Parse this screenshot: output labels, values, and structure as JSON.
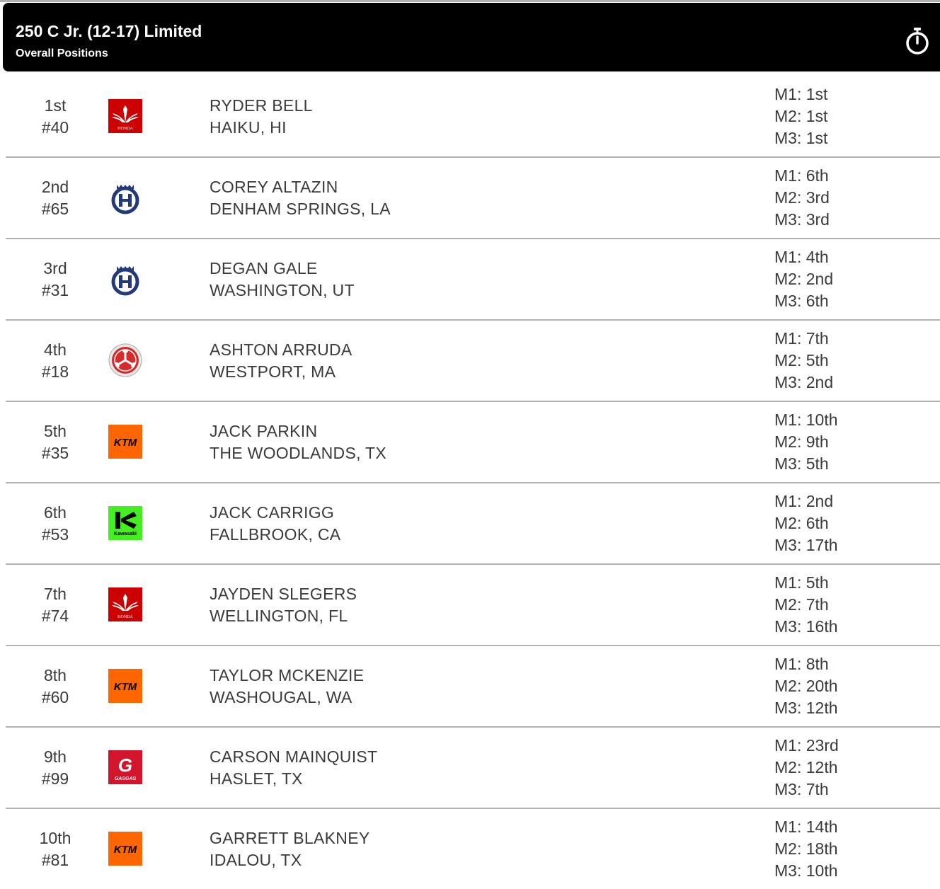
{
  "header": {
    "title": "250 C Jr. (12-17) Limited",
    "subtitle": "Overall Positions",
    "timer_icon": "stopwatch-icon"
  },
  "rows": [
    {
      "position": "1st",
      "number": "#40",
      "brand": "honda",
      "name": "RYDER BELL",
      "hometown": "HAIKU, HI",
      "m1": "M1: 1st",
      "m2": "M2: 1st",
      "m3": "M3: 1st"
    },
    {
      "position": "2nd",
      "number": "#65",
      "brand": "husqvarna",
      "name": "COREY ALTAZIN",
      "hometown": "DENHAM SPRINGS, LA",
      "m1": "M1: 6th",
      "m2": "M2: 3rd",
      "m3": "M3: 3rd"
    },
    {
      "position": "3rd",
      "number": "#31",
      "brand": "husqvarna",
      "name": "DEGAN GALE",
      "hometown": "WASHINGTON, UT",
      "m1": "M1: 4th",
      "m2": "M2: 2nd",
      "m3": "M3: 6th"
    },
    {
      "position": "4th",
      "number": "#18",
      "brand": "yamaha",
      "name": "ASHTON ARRUDA",
      "hometown": "WESTPORT, MA",
      "m1": "M1: 7th",
      "m2": "M2: 5th",
      "m3": "M3: 2nd"
    },
    {
      "position": "5th",
      "number": "#35",
      "brand": "ktm",
      "name": "JACK PARKIN",
      "hometown": "THE WOODLANDS, TX",
      "m1": "M1: 10th",
      "m2": "M2: 9th",
      "m3": "M3: 5th"
    },
    {
      "position": "6th",
      "number": "#53",
      "brand": "kawasaki",
      "name": "JACK CARRIGG",
      "hometown": "FALLBROOK, CA",
      "m1": "M1: 2nd",
      "m2": "M2: 6th",
      "m3": "M3: 17th"
    },
    {
      "position": "7th",
      "number": "#74",
      "brand": "honda",
      "name": "JAYDEN SLEGERS",
      "hometown": "WELLINGTON, FL",
      "m1": "M1: 5th",
      "m2": "M2: 7th",
      "m3": "M3: 16th"
    },
    {
      "position": "8th",
      "number": "#60",
      "brand": "ktm",
      "name": "TAYLOR MCKENZIE",
      "hometown": "WASHOUGAL, WA",
      "m1": "M1: 8th",
      "m2": "M2: 20th",
      "m3": "M3: 12th"
    },
    {
      "position": "9th",
      "number": "#99",
      "brand": "gasgas",
      "name": "CARSON MAINQUIST",
      "hometown": "HASLET, TX",
      "m1": "M1: 23rd",
      "m2": "M2: 12th",
      "m3": "M3: 7th"
    },
    {
      "position": "10th",
      "number": "#81",
      "brand": "ktm",
      "name": "GARRETT BLAKNEY",
      "hometown": "IDALOU, TX",
      "m1": "M1: 14th",
      "m2": "M2: 18th",
      "m3": "M3: 10th"
    }
  ],
  "brand_logos": {
    "honda": {
      "icon": "honda-logo-icon",
      "color": "#cc0000",
      "text": "HONDA"
    },
    "husqvarna": {
      "icon": "husqvarna-logo-icon",
      "color": "#233a7a"
    },
    "yamaha": {
      "icon": "yamaha-logo-icon",
      "color": "#d62b2b"
    },
    "ktm": {
      "icon": "ktm-logo-icon",
      "color": "#ff6600",
      "text": "KTM"
    },
    "kawasaki": {
      "icon": "kawasaki-logo-icon",
      "color": "#44ee22",
      "text": "Kawasaki"
    },
    "gasgas": {
      "icon": "gasgas-logo-icon",
      "color": "#d2142c",
      "text": "GASGAS"
    }
  }
}
